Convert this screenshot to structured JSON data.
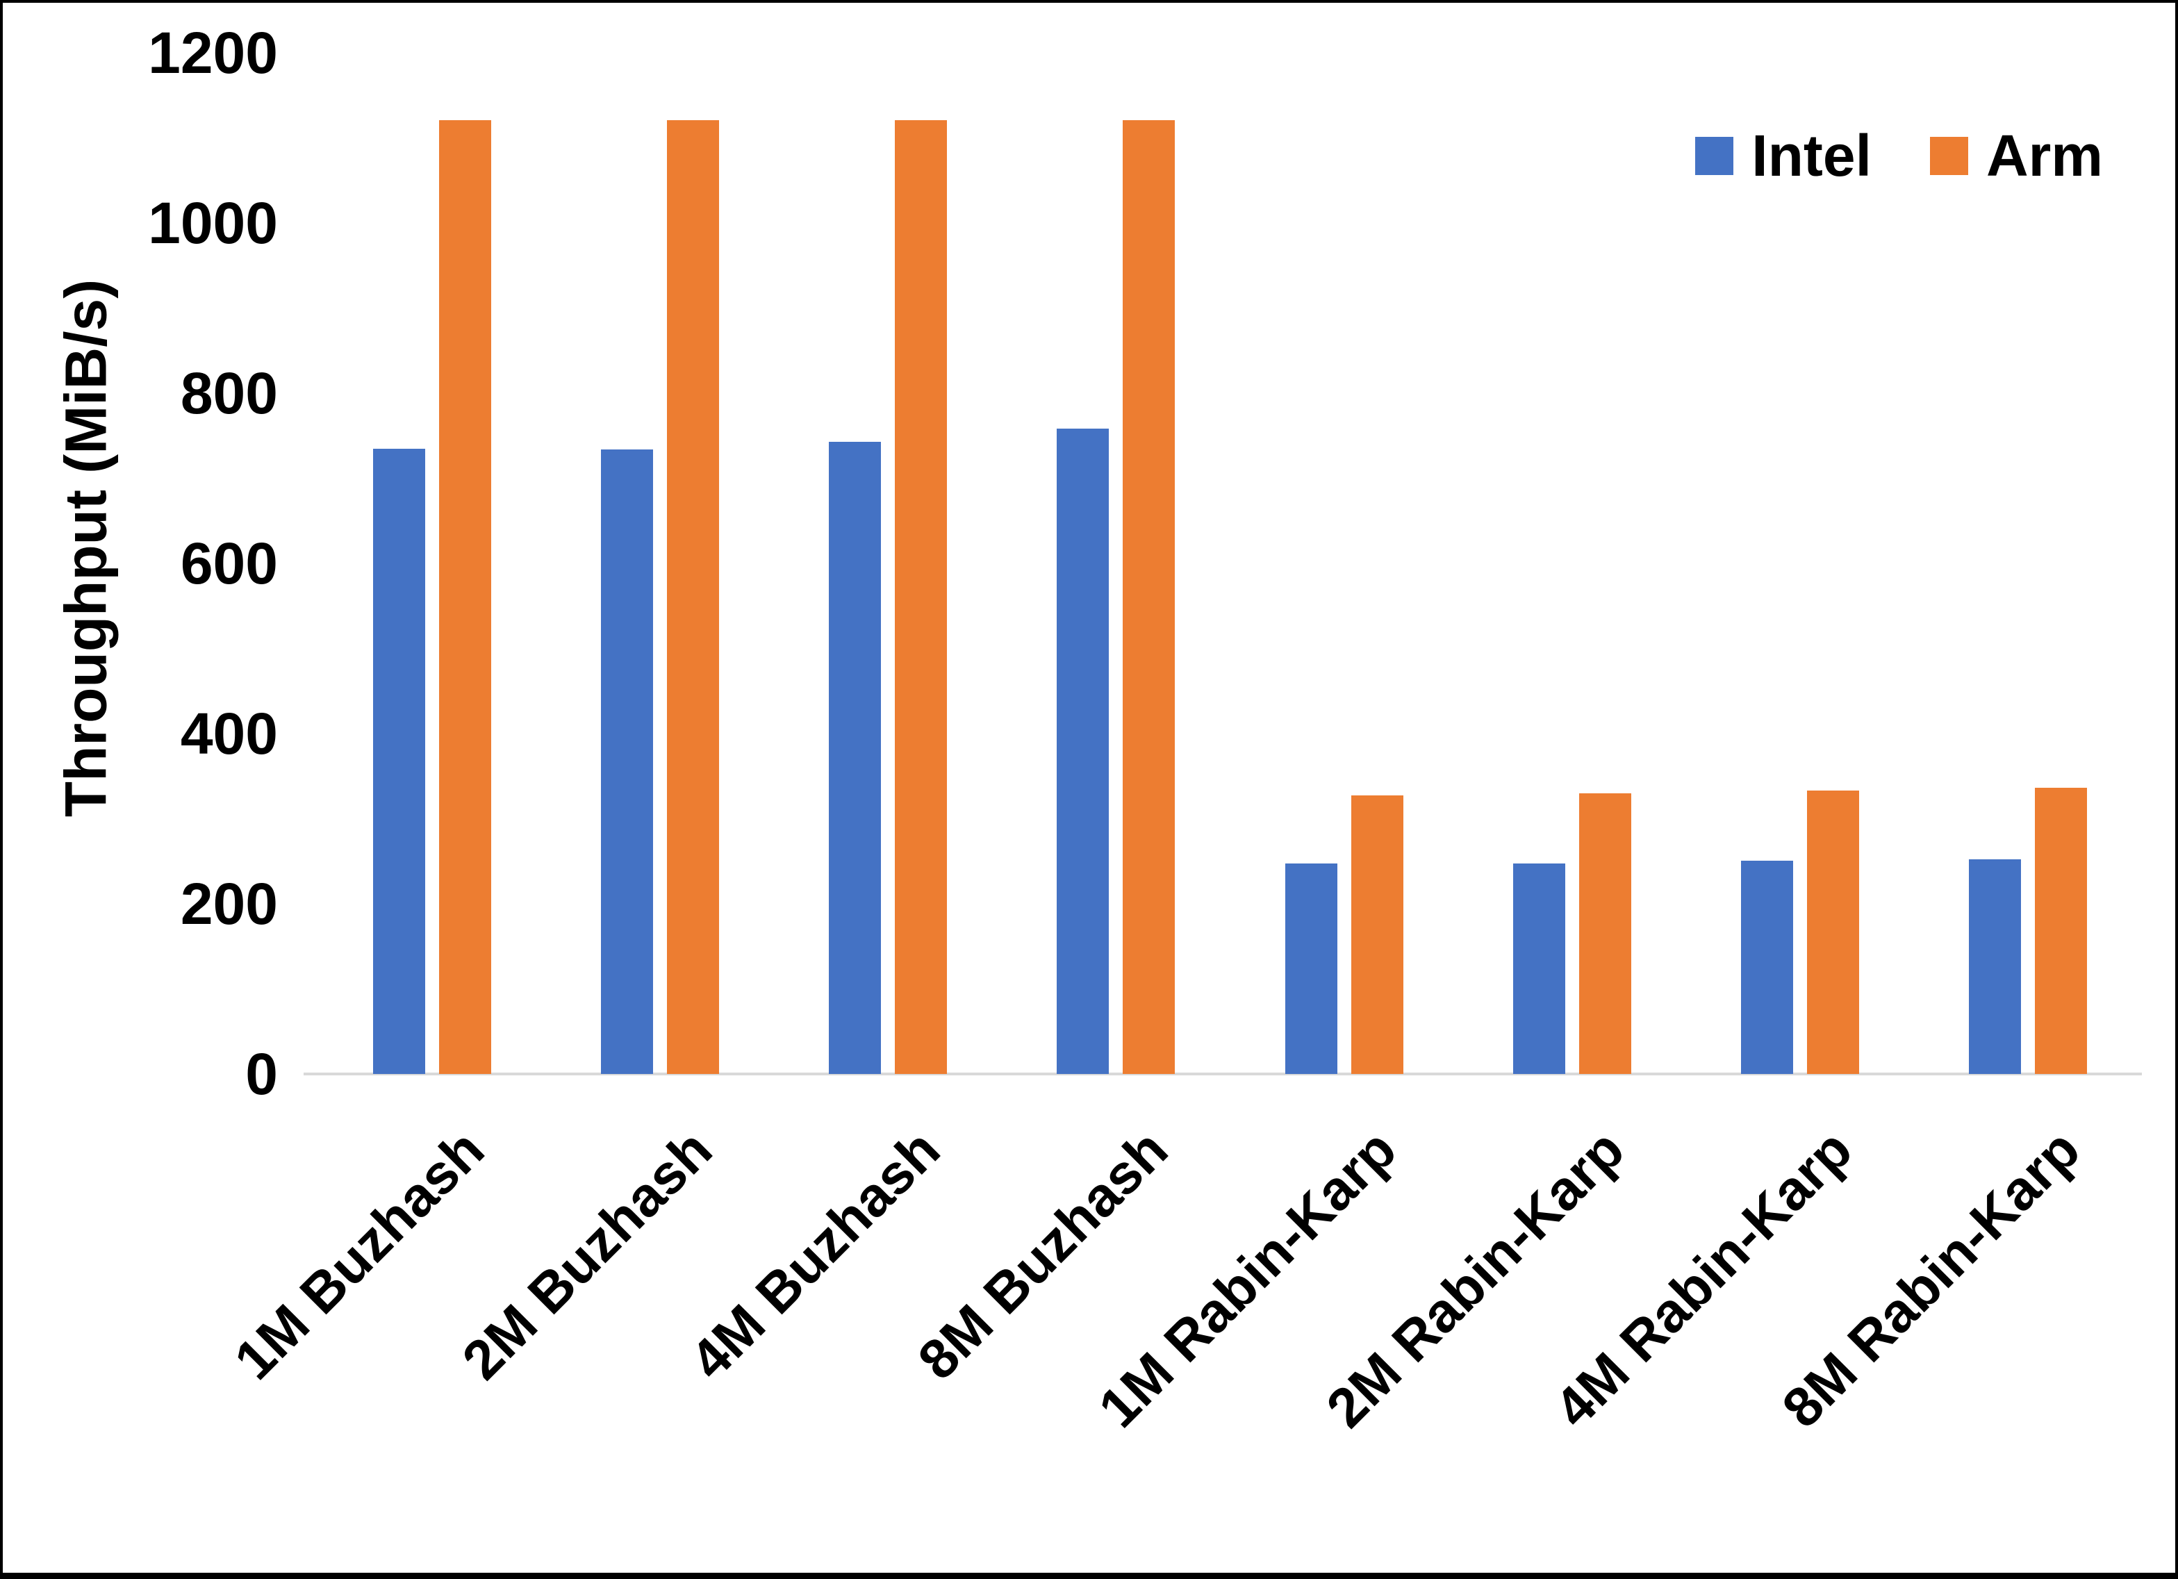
{
  "chart_data": {
    "type": "bar",
    "title": "",
    "xlabel": "",
    "ylabel": "Throughput (MiB/s)",
    "categories": [
      "1M Buzhash",
      "2M Buzhash",
      "4M Buzhash",
      "8M Buzhash",
      "1M Rabin-Karp",
      "2M Rabin-Karp",
      "4M Rabin-Karp",
      "8M Rabin-Karp"
    ],
    "series": [
      {
        "name": "Intel",
        "color": "#4472C4",
        "values": [
          735,
          734,
          743,
          758,
          247,
          247,
          251,
          252
        ]
      },
      {
        "name": "Arm",
        "color": "#ED7D31",
        "values": [
          1121,
          1121,
          1121,
          1121,
          327,
          330,
          333,
          336
        ]
      }
    ],
    "ylim": [
      0,
      1200
    ],
    "yticks": [
      0,
      200,
      400,
      600,
      800,
      1000,
      1200
    ],
    "grid": false,
    "legend_position": "top-right",
    "axis_line_color": "#D9D9D9",
    "text_color": "#000000",
    "background_color": "#FFFFFF"
  }
}
